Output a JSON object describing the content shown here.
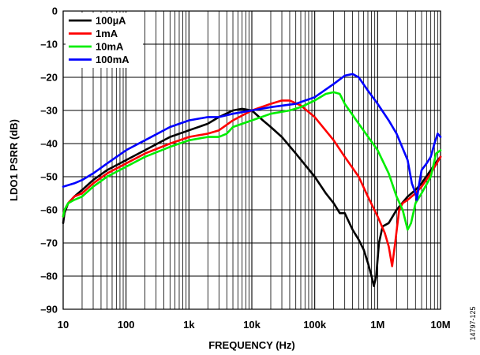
{
  "chart_data": {
    "type": "line",
    "title": "",
    "xlabel": "FREQUENCY (Hz)",
    "ylabel": "LDO1 PSRR (dB)",
    "xscale": "log",
    "xlim": [
      10,
      10000000
    ],
    "ylim": [
      -90,
      0
    ],
    "xticks": [
      10,
      100,
      1000,
      10000,
      100000,
      1000000,
      10000000
    ],
    "xtick_labels": [
      "10",
      "100",
      "1k",
      "10k",
      "100k",
      "1M",
      "10M"
    ],
    "yticks": [
      0,
      -10,
      -20,
      -30,
      -40,
      -50,
      -60,
      -70,
      -80,
      -90
    ],
    "ytick_labels": [
      "0",
      "–10",
      "–20",
      "–30",
      "–40",
      "–50",
      "–60",
      "–70",
      "–80",
      "–90"
    ],
    "grid": true,
    "legend_position": "top-left",
    "figure_id": "14797-125",
    "series": [
      {
        "name": "100µA",
        "color": "#000000",
        "points": [
          [
            10,
            -64
          ],
          [
            10.5,
            -61
          ],
          [
            12,
            -58
          ],
          [
            15,
            -56
          ],
          [
            20,
            -54
          ],
          [
            30,
            -51
          ],
          [
            50,
            -48
          ],
          [
            100,
            -45
          ],
          [
            200,
            -42
          ],
          [
            500,
            -38
          ],
          [
            1000,
            -36
          ],
          [
            2000,
            -34
          ],
          [
            3000,
            -32
          ],
          [
            5000,
            -30
          ],
          [
            7000,
            -29.5
          ],
          [
            10000,
            -30
          ],
          [
            15000,
            -33
          ],
          [
            20000,
            -35
          ],
          [
            30000,
            -38
          ],
          [
            50000,
            -43
          ],
          [
            100000,
            -50
          ],
          [
            150000,
            -55
          ],
          [
            200000,
            -58
          ],
          [
            250000,
            -61
          ],
          [
            300000,
            -61
          ],
          [
            400000,
            -66
          ],
          [
            500000,
            -69
          ],
          [
            600000,
            -72
          ],
          [
            700000,
            -76
          ],
          [
            800000,
            -80
          ],
          [
            870000,
            -83
          ],
          [
            950000,
            -80
          ],
          [
            1050000,
            -70
          ],
          [
            1200000,
            -65
          ],
          [
            1500000,
            -64
          ],
          [
            2000000,
            -60
          ],
          [
            3000000,
            -56
          ],
          [
            4000000,
            -54
          ],
          [
            5000000,
            -52
          ],
          [
            7000000,
            -48
          ],
          [
            9000000,
            -45
          ],
          [
            10000000,
            -44
          ]
        ]
      },
      {
        "name": "1mA",
        "color": "#ff0000",
        "points": [
          [
            10,
            -62
          ],
          [
            10.5,
            -60
          ],
          [
            12,
            -58
          ],
          [
            15,
            -56
          ],
          [
            20,
            -55
          ],
          [
            30,
            -52
          ],
          [
            50,
            -49
          ],
          [
            100,
            -46
          ],
          [
            200,
            -43
          ],
          [
            500,
            -40
          ],
          [
            1000,
            -38
          ],
          [
            2000,
            -37
          ],
          [
            3000,
            -36
          ],
          [
            5000,
            -33
          ],
          [
            10000,
            -30
          ],
          [
            20000,
            -28
          ],
          [
            30000,
            -27
          ],
          [
            40000,
            -27
          ],
          [
            60000,
            -28.5
          ],
          [
            100000,
            -32
          ],
          [
            200000,
            -39
          ],
          [
            300000,
            -44
          ],
          [
            500000,
            -50
          ],
          [
            700000,
            -56
          ],
          [
            1000000,
            -62
          ],
          [
            1300000,
            -67
          ],
          [
            1500000,
            -71
          ],
          [
            1700000,
            -77
          ],
          [
            1900000,
            -70
          ],
          [
            2200000,
            -60
          ],
          [
            2500000,
            -58
          ],
          [
            3000000,
            -57
          ],
          [
            4000000,
            -55
          ],
          [
            5000000,
            -53
          ],
          [
            7000000,
            -49
          ],
          [
            10000000,
            -44
          ]
        ]
      },
      {
        "name": "10mA",
        "color": "#00ee00",
        "points": [
          [
            10,
            -62
          ],
          [
            10.5,
            -60
          ],
          [
            12,
            -58
          ],
          [
            15,
            -57
          ],
          [
            20,
            -56
          ],
          [
            30,
            -53
          ],
          [
            50,
            -50
          ],
          [
            100,
            -47
          ],
          [
            200,
            -44
          ],
          [
            500,
            -41
          ],
          [
            1000,
            -39
          ],
          [
            2000,
            -38
          ],
          [
            3000,
            -38
          ],
          [
            4000,
            -37
          ],
          [
            5000,
            -35
          ],
          [
            10000,
            -33
          ],
          [
            20000,
            -31
          ],
          [
            40000,
            -30
          ],
          [
            60000,
            -29
          ],
          [
            100000,
            -27
          ],
          [
            150000,
            -25
          ],
          [
            200000,
            -24.5
          ],
          [
            250000,
            -25
          ],
          [
            300000,
            -28
          ],
          [
            500000,
            -34
          ],
          [
            1000000,
            -42
          ],
          [
            1500000,
            -49
          ],
          [
            2000000,
            -56
          ],
          [
            2500000,
            -60
          ],
          [
            3000000,
            -66
          ],
          [
            3400000,
            -64
          ],
          [
            4000000,
            -58
          ],
          [
            5000000,
            -55
          ],
          [
            7000000,
            -50
          ],
          [
            8500000,
            -43
          ],
          [
            10000000,
            -42
          ]
        ]
      },
      {
        "name": "100mA",
        "color": "#0000ff",
        "points": [
          [
            10,
            -53
          ],
          [
            15,
            -52
          ],
          [
            20,
            -51
          ],
          [
            30,
            -49
          ],
          [
            50,
            -46
          ],
          [
            100,
            -42
          ],
          [
            200,
            -39
          ],
          [
            500,
            -35
          ],
          [
            1000,
            -33
          ],
          [
            2000,
            -32
          ],
          [
            3000,
            -32
          ],
          [
            5000,
            -31
          ],
          [
            10000,
            -30
          ],
          [
            20000,
            -29
          ],
          [
            50000,
            -28
          ],
          [
            100000,
            -26
          ],
          [
            200000,
            -22
          ],
          [
            300000,
            -19.5
          ],
          [
            400000,
            -19
          ],
          [
            500000,
            -20
          ],
          [
            700000,
            -24
          ],
          [
            1000000,
            -28
          ],
          [
            1500000,
            -33
          ],
          [
            2000000,
            -37
          ],
          [
            3000000,
            -45
          ],
          [
            3500000,
            -52
          ],
          [
            4000000,
            -55
          ],
          [
            4200000,
            -57
          ],
          [
            4500000,
            -53
          ],
          [
            5000000,
            -48
          ],
          [
            6000000,
            -46
          ],
          [
            7000000,
            -44
          ],
          [
            8000000,
            -40
          ],
          [
            9000000,
            -37
          ],
          [
            10000000,
            -38
          ]
        ]
      }
    ]
  }
}
